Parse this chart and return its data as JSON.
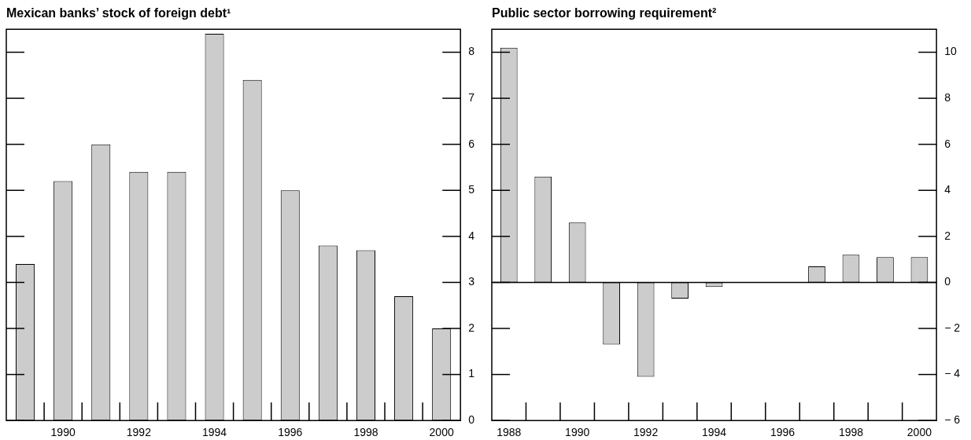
{
  "chart_data": [
    {
      "type": "bar",
      "title": "Mexican banks’ stock of foreign debt¹",
      "categories": [
        null,
        "1990",
        null,
        "1992",
        null,
        "1994",
        null,
        "1996",
        null,
        "1998",
        null,
        "2000"
      ],
      "values": [
        3.4,
        5.2,
        6.0,
        5.4,
        5.4,
        8.4,
        7.4,
        5.0,
        3.8,
        3.7,
        2.7,
        2.0
      ],
      "color": "#cccccc",
      "ylim": [
        0,
        8.5
      ],
      "yticks": [
        0,
        1,
        2,
        3,
        4,
        5,
        6,
        7,
        8
      ]
    },
    {
      "type": "bar",
      "title": "Public sector borrowing requirement²",
      "categories": [
        "1988",
        null,
        "1990",
        null,
        "1992",
        null,
        "1994",
        null,
        "1996",
        null,
        "1998",
        null,
        "2000"
      ],
      "values": [
        10.2,
        4.6,
        2.6,
        -2.7,
        -4.1,
        -0.7,
        -0.2,
        0,
        0,
        0.7,
        1.2,
        1.1,
        1.1
      ],
      "color": "#cccccc",
      "ylim": [
        -6,
        11
      ],
      "yticks": [
        {
          "value": -6,
          "label": "− 6"
        },
        {
          "value": -4,
          "label": "− 4"
        },
        {
          "value": -2,
          "label": "− 2"
        },
        0,
        2,
        4,
        6,
        8,
        10
      ]
    }
  ]
}
